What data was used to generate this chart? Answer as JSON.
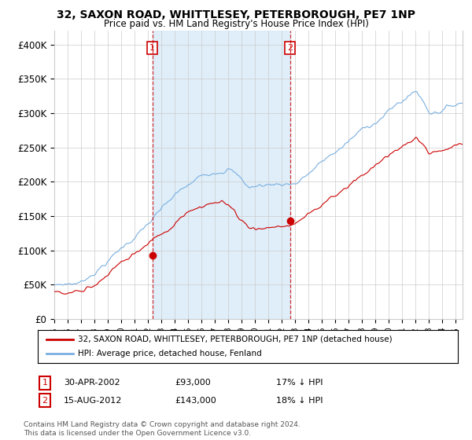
{
  "title": "32, SAXON ROAD, WHITTLESEY, PETERBOROUGH, PE7 1NP",
  "subtitle": "Price paid vs. HM Land Registry's House Price Index (HPI)",
  "ylabel_ticks": [
    "£0",
    "£50K",
    "£100K",
    "£150K",
    "£200K",
    "£250K",
    "£300K",
    "£350K",
    "£400K"
  ],
  "ylim": [
    0,
    420000
  ],
  "xlim_start": 1995.0,
  "xlim_end": 2025.5,
  "purchase1_date": 2002.33,
  "purchase1_price": 93000,
  "purchase2_date": 2012.62,
  "purchase2_price": 143000,
  "line_color_red": "#cc0000",
  "line_color_blue": "#7aafe0",
  "shade_color": "#d8eaf8",
  "marker_color": "#cc0000",
  "dashed_color": "#cc0000",
  "legend_label_red": "32, SAXON ROAD, WHITTLESEY, PETERBOROUGH, PE7 1NP (detached house)",
  "legend_label_blue": "HPI: Average price, detached house, Fenland",
  "note1_label": "1",
  "note1_date": "30-APR-2002",
  "note1_price": "£93,000",
  "note1_hpi": "17% ↓ HPI",
  "note2_label": "2",
  "note2_date": "15-AUG-2012",
  "note2_price": "£143,000",
  "note2_hpi": "18% ↓ HPI",
  "footer": "Contains HM Land Registry data © Crown copyright and database right 2024.\nThis data is licensed under the Open Government Licence v3.0.",
  "background_color": "#ffffff",
  "grid_color": "#cccccc"
}
